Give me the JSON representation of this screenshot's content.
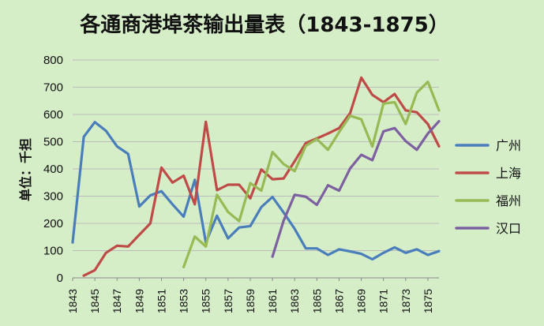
{
  "chart_data": {
    "type": "line",
    "title": "各通商港埠茶输出量表（1843-1875）",
    "ylabel": "单位：千担",
    "xlabel": "",
    "ylim": [
      0,
      800
    ],
    "yticks": [
      "0",
      "100",
      "200",
      "300",
      "400",
      "500",
      "600",
      "700",
      "800"
    ],
    "xlim": [
      1843,
      1876
    ],
    "xticks": [
      "1843",
      "1845",
      "1847",
      "1849",
      "1851",
      "1853",
      "1855",
      "1857",
      "1859",
      "1861",
      "1863",
      "1865",
      "1867",
      "1869",
      "1871",
      "1873",
      "1875"
    ],
    "grid": "horizontal",
    "legend": "right",
    "series": [
      {
        "name": "广州",
        "color": "#4a7ebb",
        "x": [
          1843,
          1844,
          1845,
          1846,
          1847,
          1848,
          1849,
          1850,
          1851,
          1852,
          1853,
          1854,
          1855,
          1856,
          1857,
          1858,
          1859,
          1860,
          1861,
          1862,
          1863,
          1864,
          1865,
          1866,
          1867,
          1868,
          1869,
          1870,
          1871,
          1872,
          1873,
          1874,
          1875,
          1876
        ],
        "y": [
          130,
          518,
          572,
          540,
          483,
          455,
          262,
          303,
          318,
          270,
          225,
          360,
          130,
          228,
          145,
          185,
          190,
          260,
          297,
          240,
          180,
          108,
          108,
          84,
          105,
          97,
          88,
          68,
          92,
          112,
          92,
          105,
          84,
          98
        ]
      },
      {
        "name": "上海",
        "color": "#be4b48",
        "x": [
          1844,
          1845,
          1846,
          1847,
          1848,
          1849,
          1850,
          1851,
          1852,
          1853,
          1854,
          1855,
          1856,
          1857,
          1858,
          1859,
          1860,
          1861,
          1862,
          1863,
          1864,
          1865,
          1866,
          1867,
          1868,
          1869,
          1870,
          1871,
          1872,
          1873,
          1874,
          1875,
          1876
        ],
        "y": [
          8,
          28,
          92,
          118,
          115,
          158,
          200,
          405,
          350,
          375,
          270,
          573,
          322,
          342,
          342,
          292,
          398,
          362,
          365,
          428,
          495,
          512,
          530,
          550,
          605,
          735,
          672,
          645,
          675,
          615,
          608,
          565,
          483
        ]
      },
      {
        "name": "福州",
        "color": "#98b954",
        "x": [
          1853,
          1854,
          1855,
          1856,
          1857,
          1858,
          1859,
          1860,
          1861,
          1862,
          1863,
          1864,
          1865,
          1866,
          1867,
          1868,
          1869,
          1870,
          1871,
          1872,
          1873,
          1874,
          1875,
          1876
        ],
        "y": [
          40,
          152,
          115,
          305,
          242,
          208,
          348,
          320,
          462,
          418,
          392,
          485,
          510,
          470,
          535,
          595,
          582,
          482,
          640,
          645,
          565,
          680,
          720,
          615
        ]
      },
      {
        "name": "汉口",
        "color": "#7d60a0",
        "x": [
          1861,
          1862,
          1863,
          1864,
          1865,
          1866,
          1867,
          1868,
          1869,
          1870,
          1871,
          1872,
          1873,
          1874,
          1875,
          1876
        ],
        "y": [
          78,
          210,
          305,
          298,
          268,
          340,
          320,
          402,
          452,
          432,
          538,
          550,
          502,
          470,
          530,
          575
        ]
      }
    ]
  }
}
